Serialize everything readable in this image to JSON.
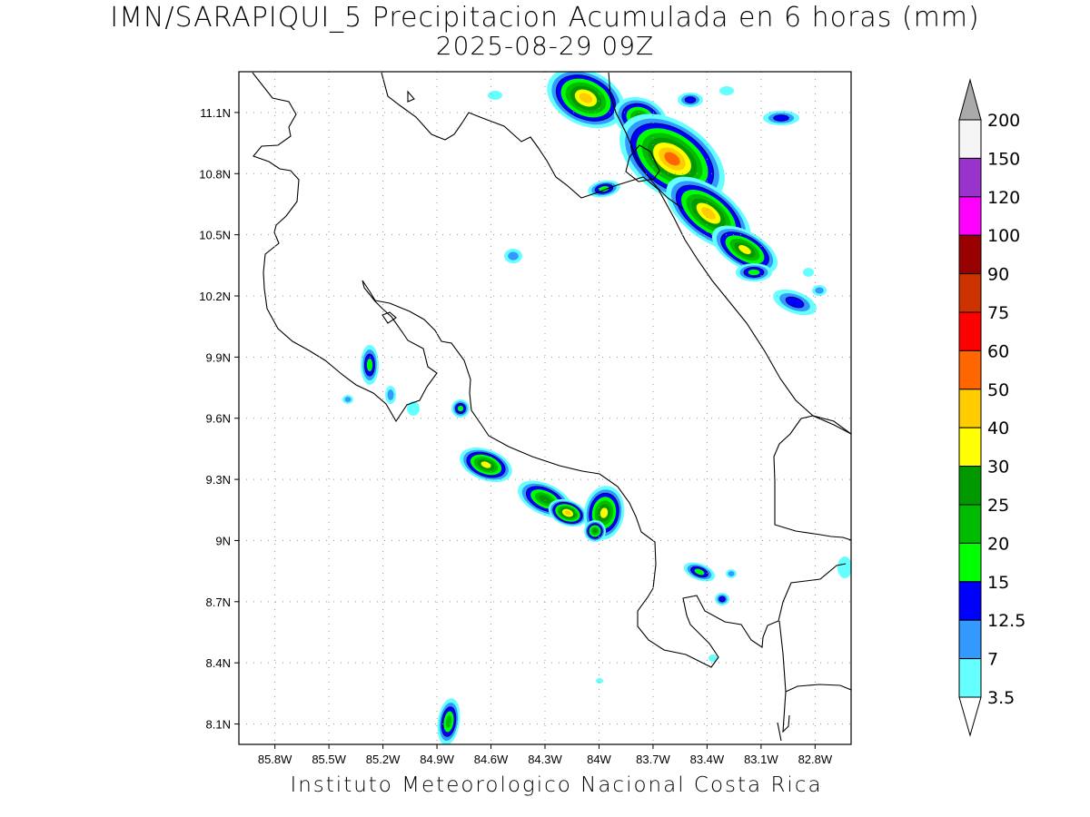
{
  "header": {
    "title": "IMN/SARAPIQUI_5 Precipitacion Acumulada en 6 horas (mm)",
    "subtitle": "2025-08-29 09Z"
  },
  "footer": {
    "credit": "Instituto Meteorologico Nacional Costa Rica"
  },
  "map": {
    "lon_range": [
      -86.0,
      -82.6
    ],
    "lat_range": [
      8.0,
      11.3
    ],
    "lat_ticks": [
      {
        "value": 11.1,
        "label": "11.1N"
      },
      {
        "value": 10.8,
        "label": "10.8N"
      },
      {
        "value": 10.5,
        "label": "10.5N"
      },
      {
        "value": 10.2,
        "label": "10.2N"
      },
      {
        "value": 9.9,
        "label": "9.9N"
      },
      {
        "value": 9.6,
        "label": "9.6N"
      },
      {
        "value": 9.3,
        "label": "9.3N"
      },
      {
        "value": 9.0,
        "label": "9N"
      },
      {
        "value": 8.7,
        "label": "8.7N"
      },
      {
        "value": 8.4,
        "label": "8.4N"
      },
      {
        "value": 8.1,
        "label": "8.1N"
      }
    ],
    "lon_ticks": [
      {
        "value": -85.8,
        "label": "85.8W"
      },
      {
        "value": -85.5,
        "label": "85.5W"
      },
      {
        "value": -85.2,
        "label": "85.2W"
      },
      {
        "value": -84.9,
        "label": "84.9W"
      },
      {
        "value": -84.6,
        "label": "84.6W"
      },
      {
        "value": -84.3,
        "label": "84.3W"
      },
      {
        "value": -84.0,
        "label": "84W"
      },
      {
        "value": -83.7,
        "label": "83.7W"
      },
      {
        "value": -83.4,
        "label": "83.4W"
      },
      {
        "value": -83.1,
        "label": "83.1W"
      },
      {
        "value": -82.8,
        "label": "82.8W"
      }
    ],
    "grid": true
  },
  "colorbar": {
    "unit": "mm",
    "labels": [
      "200",
      "150",
      "120",
      "100",
      "90",
      "75",
      "60",
      "50",
      "40",
      "30",
      "25",
      "20",
      "15",
      "12.5",
      "7",
      "3.5"
    ],
    "colors": [
      "#f5f5f5",
      "#9933cc",
      "#ff00ff",
      "#990000",
      "#cc3300",
      "#ff0000",
      "#ff6600",
      "#ffcc00",
      "#ffff00",
      "#009900",
      "#00bb00",
      "#00ff00",
      "#0000ff",
      "#3399ff",
      "#66ffff"
    ]
  },
  "precip_scale": [
    "#66ffff",
    "#3399ff",
    "#0000ff",
    "#00ff00",
    "#00bb00",
    "#009900",
    "#ffff00",
    "#ffcc00",
    "#ff6600",
    "#ff0000"
  ]
}
